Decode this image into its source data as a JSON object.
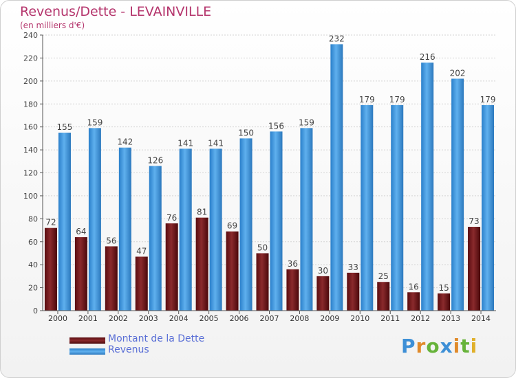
{
  "chart_data": {
    "type": "bar",
    "title": "Revenus/Dette - LEVAINVILLE",
    "subtitle": "(en milliers d'€)",
    "categories": [
      "2000",
      "2001",
      "2002",
      "2003",
      "2004",
      "2005",
      "2006",
      "2007",
      "2008",
      "2009",
      "2010",
      "2011",
      "2012",
      "2013",
      "2014"
    ],
    "series": [
      {
        "name": "Montant de la Dette",
        "color": "#7a1518",
        "values": [
          72,
          64,
          56,
          47,
          76,
          81,
          69,
          50,
          36,
          30,
          33,
          25,
          16,
          15,
          73
        ]
      },
      {
        "name": "Revenus",
        "color": "#3d93de",
        "values": [
          155,
          159,
          142,
          126,
          141,
          141,
          150,
          156,
          159,
          232,
          179,
          179,
          216,
          202,
          179
        ]
      }
    ],
    "ylim": [
      0,
      240
    ],
    "yticks": [
      0,
      20,
      40,
      60,
      80,
      100,
      120,
      140,
      160,
      180,
      200,
      220,
      240
    ],
    "grid": true,
    "legend": "bottom-left"
  },
  "logo": "Proxiti"
}
